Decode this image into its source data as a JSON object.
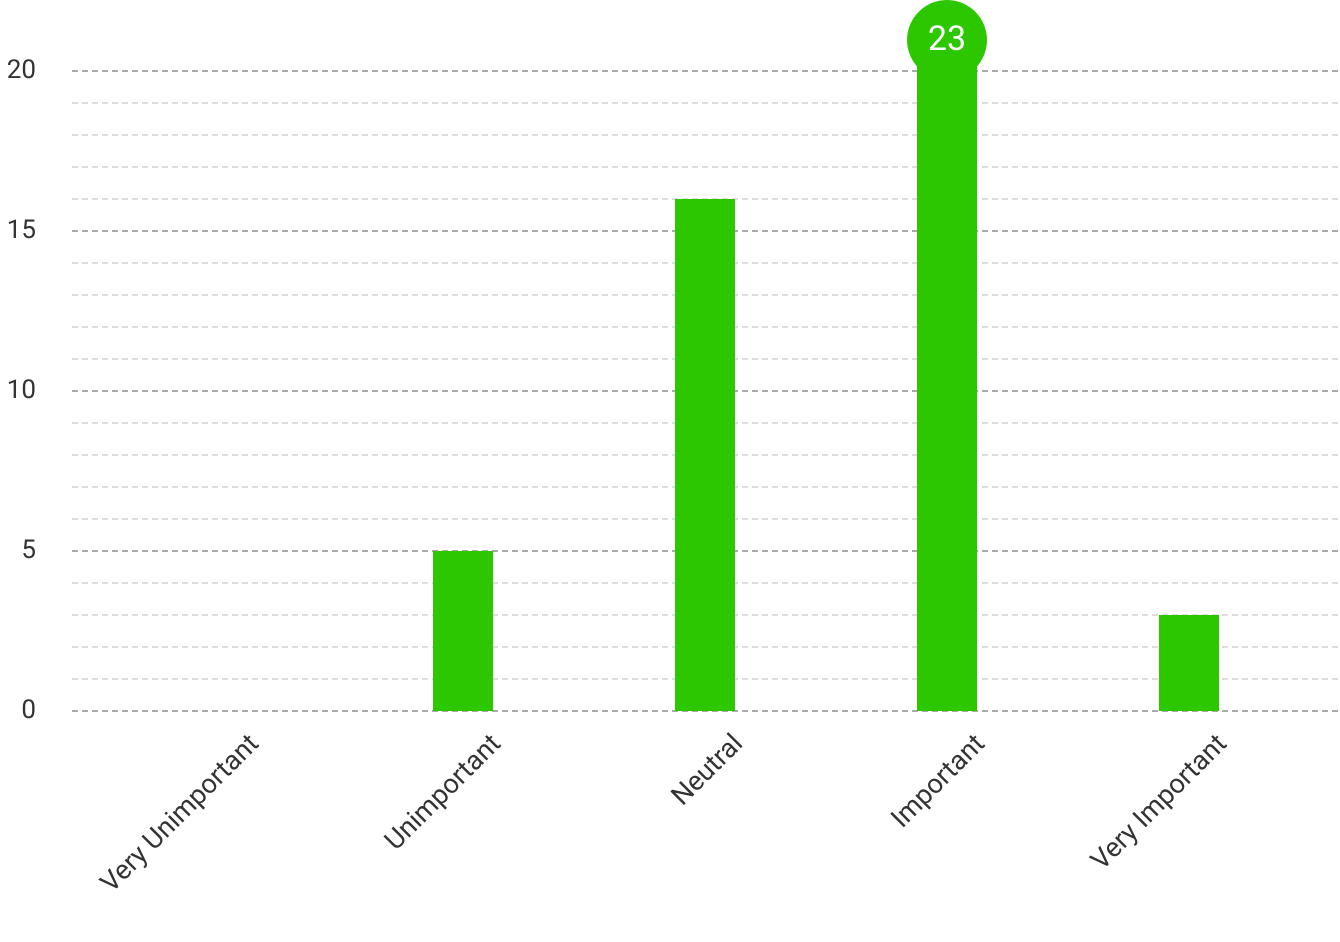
{
  "chart_data": {
    "type": "bar",
    "categories": [
      "Very Unimportant",
      "Unimportant",
      "Neutral",
      "Important",
      "Very Important"
    ],
    "values": [
      0,
      5,
      16,
      23,
      3
    ],
    "color": "#2dc700",
    "ylim": [
      0,
      21
    ],
    "yticks": [
      0,
      5,
      10,
      15,
      20
    ],
    "grid": true
  }
}
